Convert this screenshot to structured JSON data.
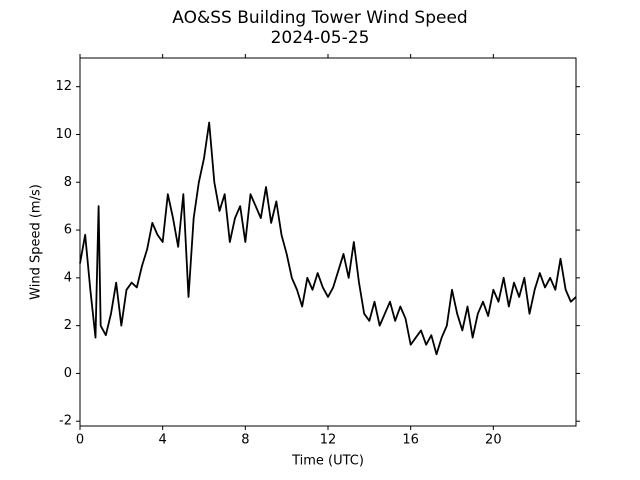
{
  "chart_data": {
    "type": "line",
    "title": "AO&SS Building Tower Wind Speed",
    "subtitle": "2024-05-25",
    "x_label": "Time (UTC)",
    "y_label": "Wind Speed (m/s)",
    "x": [
      0,
      0.25,
      0.5,
      0.75,
      0.9,
      1,
      1.25,
      1.5,
      1.75,
      2,
      2.25,
      2.5,
      2.75,
      3,
      3.25,
      3.5,
      3.75,
      4,
      4.25,
      4.5,
      4.75,
      5,
      5.25,
      5.5,
      5.75,
      6,
      6.25,
      6.5,
      6.75,
      7,
      7.25,
      7.5,
      7.75,
      8,
      8.25,
      8.5,
      8.75,
      9,
      9.25,
      9.5,
      9.75,
      10,
      10.25,
      10.5,
      10.75,
      11,
      11.25,
      11.5,
      11.75,
      12,
      12.25,
      12.5,
      12.75,
      13,
      13.25,
      13.5,
      13.75,
      14,
      14.25,
      14.5,
      14.75,
      15,
      15.25,
      15.5,
      15.75,
      16,
      16.25,
      16.5,
      16.75,
      17,
      17.25,
      17.5,
      17.75,
      18,
      18.25,
      18.5,
      18.75,
      19,
      19.25,
      19.5,
      19.75,
      20,
      20.25,
      20.5,
      20.75,
      21,
      21.25,
      21.5,
      21.75,
      22,
      22.25,
      22.5,
      22.75,
      23,
      23.25,
      23.5,
      23.75,
      24
    ],
    "series": [
      {
        "name": "Wind Speed",
        "color": "#000000",
        "values": [
          4.6,
          5.8,
          3.5,
          1.5,
          7.0,
          2.0,
          1.6,
          2.5,
          3.8,
          2.0,
          3.5,
          3.8,
          3.6,
          4.5,
          5.2,
          6.3,
          5.8,
          5.5,
          7.5,
          6.5,
          5.3,
          7.5,
          3.2,
          6.5,
          8.0,
          9.0,
          10.5,
          8.0,
          6.8,
          7.5,
          5.5,
          6.5,
          7.0,
          5.5,
          7.5,
          7.0,
          6.5,
          7.8,
          6.3,
          7.2,
          5.8,
          5.0,
          4.0,
          3.5,
          2.8,
          4.0,
          3.5,
          4.2,
          3.6,
          3.2,
          3.6,
          4.3,
          5.0,
          4.0,
          5.5,
          3.8,
          2.5,
          2.2,
          3.0,
          2.0,
          2.5,
          3.0,
          2.2,
          2.8,
          2.3,
          1.2,
          1.5,
          1.8,
          1.2,
          1.6,
          0.8,
          1.5,
          2.0,
          3.5,
          2.5,
          1.8,
          2.8,
          1.5,
          2.5,
          3.0,
          2.4,
          3.5,
          3.0,
          4.0,
          2.8,
          3.8,
          3.2,
          4.0,
          2.5,
          3.5,
          4.2,
          3.6,
          4.0,
          3.5,
          4.8,
          3.5,
          3.0,
          3.2
        ]
      }
    ],
    "xlim": [
      0,
      24
    ],
    "xticks": [
      0,
      4,
      8,
      12,
      16,
      20
    ],
    "ylim": [
      -2.2,
      13.2
    ],
    "yticks": [
      -2,
      0,
      2,
      4,
      6,
      8,
      10,
      12
    ]
  }
}
